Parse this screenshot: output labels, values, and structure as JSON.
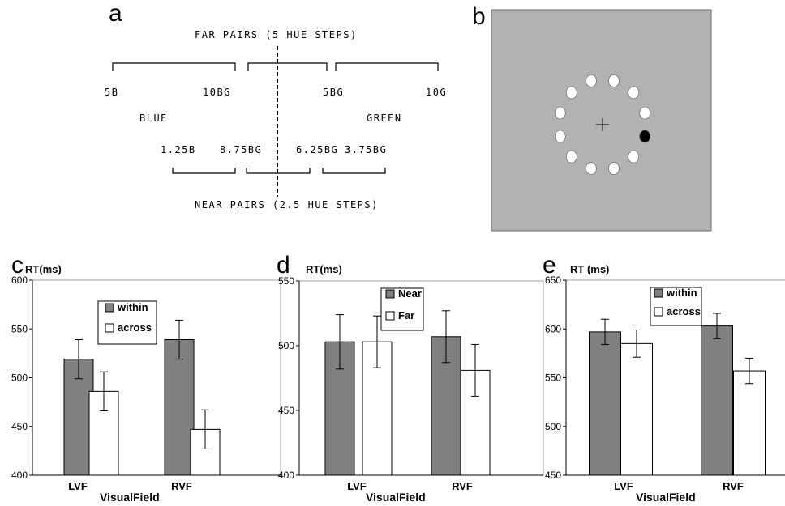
{
  "panels": {
    "a": {
      "label": "a",
      "far_title": "FAR PAIRS (5 HUE STEPS)",
      "near_title": "NEAR PAIRS (2.5 HUE STEPS)",
      "far_labels": [
        "5B",
        "10BG",
        "5BG",
        "10G"
      ],
      "near_labels": [
        "1.25B",
        "8.75BG",
        "6.25BG",
        "3.75BG"
      ],
      "category_left": "BLUE",
      "category_right": "GREEN"
    },
    "b": {
      "label": "b",
      "background_color": "#b2b2b2",
      "disc_color": "#ffffff",
      "target_color": "#000000",
      "disc_count": 12
    },
    "c": {
      "label": "c"
    },
    "d": {
      "label": "d"
    },
    "e": {
      "label": "e"
    }
  },
  "chart_data": [
    {
      "id": "c",
      "type": "bar",
      "ylabel": "RT(ms)",
      "xlabel": "VisualField",
      "categories": [
        "LVF",
        "RVF"
      ],
      "ylim": [
        400,
        600
      ],
      "yticks": [
        400,
        450,
        500,
        550,
        600
      ],
      "legend_position": "top-right",
      "series": [
        {
          "name": "within",
          "color": "#808080",
          "values": [
            519,
            539
          ],
          "errors": [
            20,
            20
          ]
        },
        {
          "name": "across",
          "color": "#ffffff",
          "values": [
            486,
            447
          ],
          "errors": [
            20,
            20
          ]
        }
      ]
    },
    {
      "id": "d",
      "type": "bar",
      "ylabel": "RT(ms)",
      "xlabel": "VisualField",
      "categories": [
        "LVF",
        "RVF"
      ],
      "ylim": [
        400,
        550
      ],
      "yticks": [
        400,
        450,
        500,
        550
      ],
      "legend_position": "top",
      "series": [
        {
          "name": "Near",
          "color": "#808080",
          "values": [
            503,
            507
          ],
          "errors": [
            21,
            20
          ]
        },
        {
          "name": "Far",
          "color": "#ffffff",
          "values": [
            503,
            481
          ],
          "errors": [
            20,
            20
          ]
        }
      ]
    },
    {
      "id": "e",
      "type": "bar",
      "ylabel": "RT (ms)",
      "xlabel": "VisualField",
      "categories": [
        "LVF",
        "RVF"
      ],
      "ylim": [
        450,
        650
      ],
      "yticks": [
        450,
        500,
        550,
        600,
        650
      ],
      "legend_position": "top",
      "series": [
        {
          "name": "within",
          "color": "#808080",
          "values": [
            597,
            603
          ],
          "errors": [
            13,
            13
          ]
        },
        {
          "name": "across",
          "color": "#ffffff",
          "values": [
            585,
            557
          ],
          "errors": [
            14,
            13
          ]
        }
      ]
    }
  ]
}
